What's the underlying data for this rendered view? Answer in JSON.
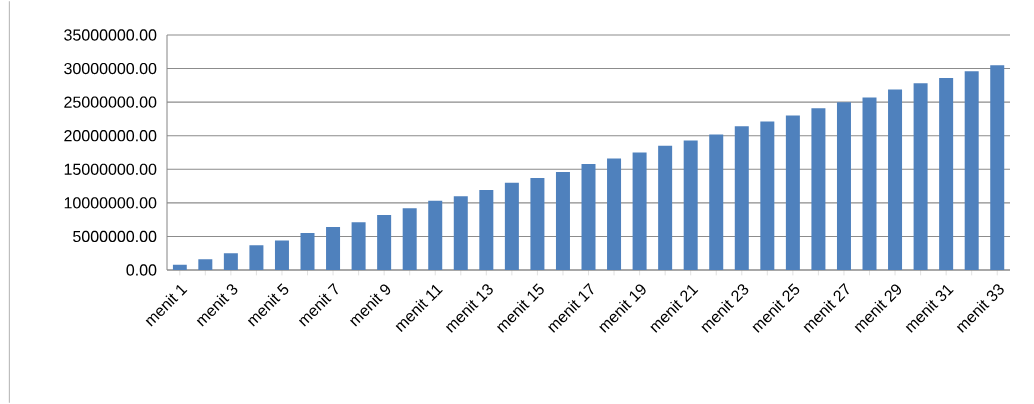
{
  "chart_data": {
    "type": "bar",
    "color": "#4f81bd",
    "categories": [
      "menit 1",
      null,
      "menit 3",
      null,
      "menit 5",
      null,
      "menit 7",
      null,
      "menit 9",
      null,
      "menit 11",
      null,
      "menit 13",
      null,
      "menit 15",
      null,
      "menit 17",
      null,
      "menit 19",
      null,
      "menit 21",
      null,
      "menit 23",
      null,
      "menit 25",
      null,
      "menit 27",
      null,
      "menit 29",
      null,
      "menit 31",
      null,
      "menit 33"
    ],
    "values": [
      800000,
      1600000,
      2500000,
      3700000,
      4400000,
      5500000,
      6400000,
      7100000,
      8200000,
      9200000,
      10300000,
      11000000,
      11900000,
      13000000,
      13700000,
      14600000,
      15800000,
      16600000,
      17500000,
      18500000,
      19300000,
      20200000,
      21400000,
      22100000,
      23000000,
      24100000,
      25000000,
      25700000,
      26900000,
      27800000,
      28600000,
      29600000,
      30500000
    ],
    "ylim": [
      0,
      35000000
    ],
    "yticks": [
      {
        "value": 0,
        "label": "0.00"
      },
      {
        "value": 5000000,
        "label": "5000000.00"
      },
      {
        "value": 10000000,
        "label": "10000000.00"
      },
      {
        "value": 15000000,
        "label": "15000000.00"
      },
      {
        "value": 20000000,
        "label": "20000000.00"
      },
      {
        "value": 25000000,
        "label": "25000000.00"
      },
      {
        "value": 30000000,
        "label": "30000000.00"
      },
      {
        "value": 35000000,
        "label": "35000000.00"
      }
    ],
    "grid": "y"
  }
}
